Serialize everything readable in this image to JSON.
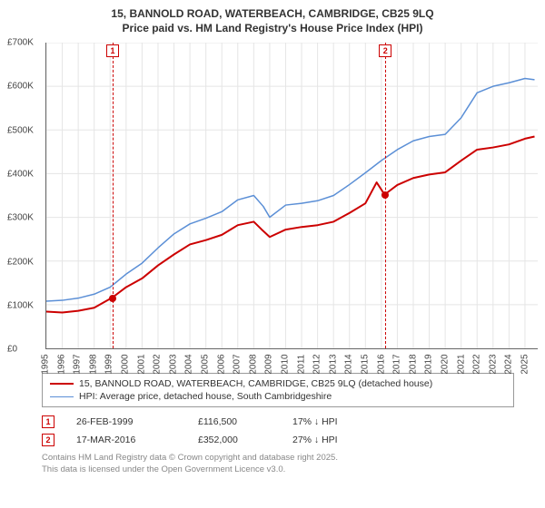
{
  "title": {
    "line1": "15, BANNOLD ROAD, WATERBEACH, CAMBRIDGE, CB25 9LQ",
    "line2": "Price paid vs. HM Land Registry's House Price Index (HPI)",
    "fontsize": 12
  },
  "chart": {
    "type": "line",
    "xlim": [
      1995,
      2025.8
    ],
    "ylim": [
      0,
      700000
    ],
    "ytick_step": 100000,
    "yticks_fmt": [
      "£0",
      "£100K",
      "£200K",
      "£300K",
      "£400K",
      "£500K",
      "£600K",
      "£700K"
    ],
    "xticks": [
      1995,
      1996,
      1997,
      1998,
      1999,
      2000,
      2001,
      2002,
      2003,
      2004,
      2005,
      2006,
      2007,
      2008,
      2009,
      2010,
      2011,
      2012,
      2013,
      2014,
      2015,
      2016,
      2017,
      2018,
      2019,
      2020,
      2021,
      2022,
      2023,
      2024,
      2025
    ],
    "grid_color": "#e5e5e5",
    "background_color": "#ffffff",
    "series": {
      "property": {
        "label": "15, BANNOLD ROAD, WATERBEACH, CAMBRIDGE, CB25 9LQ (detached house)",
        "color": "#cc0000",
        "line_width": 2,
        "points": [
          [
            1995.0,
            84000
          ],
          [
            1996.0,
            82000
          ],
          [
            1997.0,
            86000
          ],
          [
            1998.0,
            93000
          ],
          [
            1999.15,
            116500
          ],
          [
            2000.0,
            140000
          ],
          [
            2001.0,
            160000
          ],
          [
            2002.0,
            190000
          ],
          [
            2003.0,
            215000
          ],
          [
            2004.0,
            238000
          ],
          [
            2005.0,
            248000
          ],
          [
            2006.0,
            260000
          ],
          [
            2007.0,
            282000
          ],
          [
            2008.0,
            290000
          ],
          [
            2008.5,
            272000
          ],
          [
            2009.0,
            255000
          ],
          [
            2010.0,
            272000
          ],
          [
            2011.0,
            278000
          ],
          [
            2012.0,
            282000
          ],
          [
            2013.0,
            290000
          ],
          [
            2014.0,
            310000
          ],
          [
            2015.0,
            332000
          ],
          [
            2015.7,
            380000
          ],
          [
            2016.2,
            352000
          ],
          [
            2017.0,
            374000
          ],
          [
            2018.0,
            390000
          ],
          [
            2019.0,
            398000
          ],
          [
            2020.0,
            403000
          ],
          [
            2021.0,
            430000
          ],
          [
            2022.0,
            455000
          ],
          [
            2023.0,
            460000
          ],
          [
            2024.0,
            467000
          ],
          [
            2025.0,
            480000
          ],
          [
            2025.6,
            485000
          ]
        ]
      },
      "hpi": {
        "label": "HPI: Average price, detached house, South Cambridgeshire",
        "color": "#5b8fd6",
        "line_width": 1.5,
        "points": [
          [
            1995.0,
            108000
          ],
          [
            1996.0,
            110000
          ],
          [
            1997.0,
            115000
          ],
          [
            1998.0,
            124000
          ],
          [
            1999.0,
            140000
          ],
          [
            2000.0,
            170000
          ],
          [
            2001.0,
            195000
          ],
          [
            2002.0,
            230000
          ],
          [
            2003.0,
            262000
          ],
          [
            2004.0,
            285000
          ],
          [
            2005.0,
            298000
          ],
          [
            2006.0,
            313000
          ],
          [
            2007.0,
            340000
          ],
          [
            2008.0,
            350000
          ],
          [
            2008.6,
            325000
          ],
          [
            2009.0,
            300000
          ],
          [
            2010.0,
            328000
          ],
          [
            2011.0,
            332000
          ],
          [
            2012.0,
            338000
          ],
          [
            2013.0,
            350000
          ],
          [
            2014.0,
            375000
          ],
          [
            2015.0,
            402000
          ],
          [
            2016.0,
            430000
          ],
          [
            2017.0,
            455000
          ],
          [
            2018.0,
            475000
          ],
          [
            2019.0,
            485000
          ],
          [
            2020.0,
            490000
          ],
          [
            2021.0,
            528000
          ],
          [
            2022.0,
            585000
          ],
          [
            2023.0,
            600000
          ],
          [
            2024.0,
            608000
          ],
          [
            2025.0,
            618000
          ],
          [
            2025.6,
            615000
          ]
        ]
      }
    },
    "sale_markers": [
      {
        "n": "1",
        "x": 1999.15,
        "y": 116500,
        "color": "#cc0000"
      },
      {
        "n": "2",
        "x": 2016.21,
        "y": 352000,
        "color": "#cc0000"
      }
    ]
  },
  "legend": {
    "border_color": "#999999"
  },
  "sales": [
    {
      "n": "1",
      "date": "26-FEB-1999",
      "price": "£116,500",
      "diff": "17% ↓ HPI",
      "color": "#cc0000"
    },
    {
      "n": "2",
      "date": "17-MAR-2016",
      "price": "£352,000",
      "diff": "27% ↓ HPI",
      "color": "#cc0000"
    }
  ],
  "footer": {
    "line1": "Contains HM Land Registry data © Crown copyright and database right 2025.",
    "line2": "This data is licensed under the Open Government Licence v3.0."
  }
}
